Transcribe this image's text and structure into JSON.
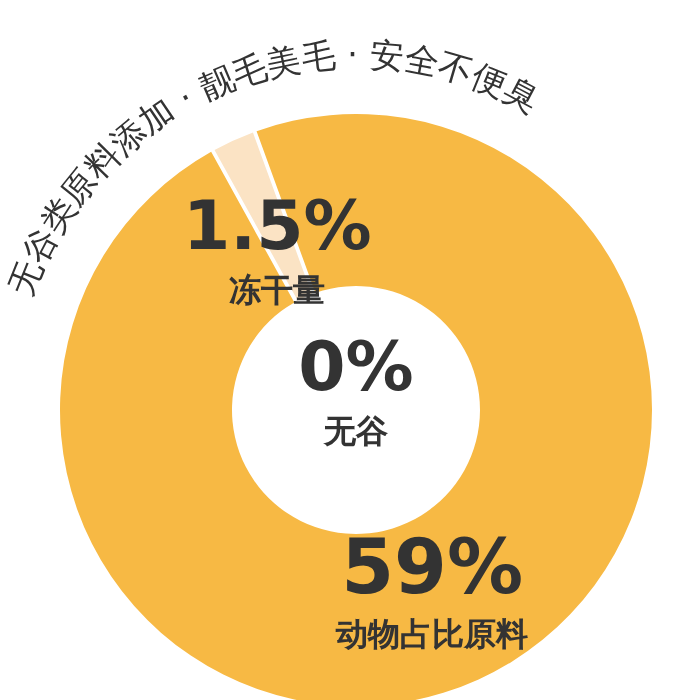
{
  "chart_data": {
    "type": "donut",
    "title": "无谷类原料添加 · 靓毛美毛 · 安全不便臭",
    "categories": [
      "动物占比原料",
      "冻干量",
      "无谷"
    ],
    "values": [
      59,
      1.5,
      0
    ],
    "value_labels": [
      "59%",
      "1.5%",
      "0%"
    ],
    "colors": [
      "#f7b944",
      "#fbe3c4",
      "#f2d3a0"
    ],
    "legend": false
  }
}
